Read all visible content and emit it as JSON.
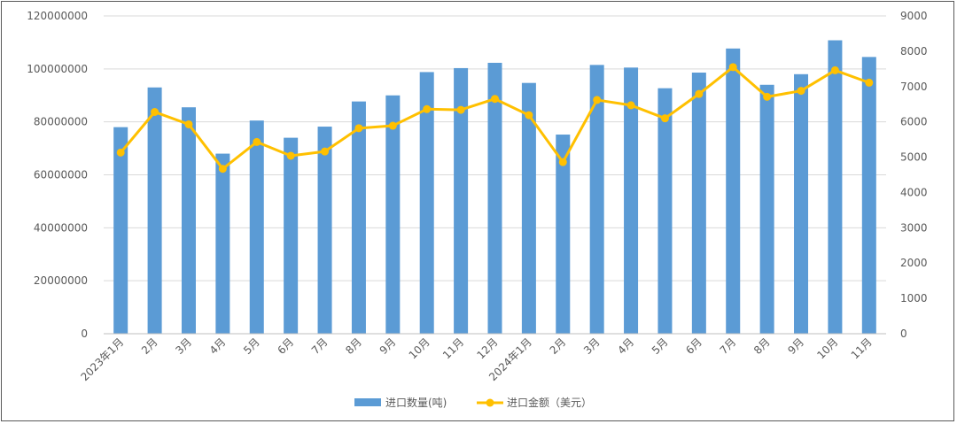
{
  "chart_data": {
    "type": "bar",
    "categories": [
      "2023年1月",
      "2月",
      "3月",
      "4月",
      "5月",
      "6月",
      "7月",
      "8月",
      "9月",
      "10月",
      "11月",
      "12月",
      "2024年1月",
      "2月",
      "3月",
      "4月",
      "5月",
      "6月",
      "7月",
      "8月",
      "9月",
      "10月",
      "11月"
    ],
    "series": [
      {
        "name": "进口数量(吨)",
        "type": "bar",
        "axis": "left",
        "color": "#5B9BD5",
        "values": [
          78000000,
          93000000,
          85500000,
          68000000,
          80500000,
          74000000,
          78200000,
          87700000,
          90000000,
          98800000,
          100300000,
          102300000,
          94700000,
          75200000,
          101500000,
          100500000,
          92700000,
          98600000,
          107700000,
          94000000,
          98000000,
          110800000,
          104500000
        ]
      },
      {
        "name": "进口金额（美元）",
        "type": "line",
        "axis": "right",
        "color": "#FFC000",
        "values": [
          5130,
          6280,
          5930,
          4670,
          5430,
          5040,
          5160,
          5820,
          5890,
          6360,
          6340,
          6650,
          6190,
          4860,
          6620,
          6470,
          6100,
          6790,
          7550,
          6710,
          6880,
          7460,
          7110
        ]
      }
    ],
    "y_left": {
      "ylim": [
        0,
        120000000
      ],
      "ticks": [
        "0",
        "20000000",
        "40000000",
        "60000000",
        "80000000",
        "100000000",
        "120000000"
      ]
    },
    "y_right": {
      "ylim": [
        0,
        9000
      ],
      "ticks": [
        "0",
        "1000",
        "2000",
        "3000",
        "4000",
        "5000",
        "6000",
        "7000",
        "8000",
        "9000"
      ]
    },
    "grid": true,
    "legend": "bottom-center",
    "title": "",
    "xlabel": "",
    "ylabel": ""
  }
}
